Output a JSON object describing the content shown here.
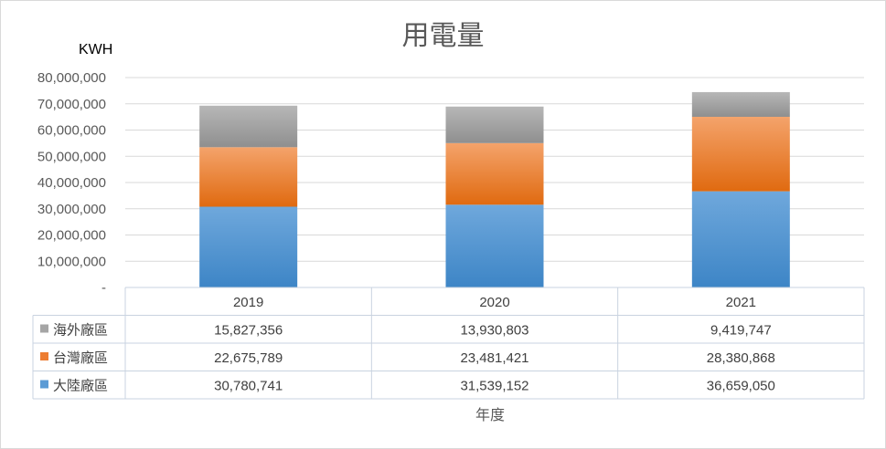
{
  "chart_data": {
    "type": "bar",
    "stacked": true,
    "title": "用電量",
    "ylabel": "KWH",
    "xlabel": "年度",
    "ylim": [
      0,
      80000000
    ],
    "yticks": [
      "-",
      "10,000,000",
      "20,000,000",
      "30,000,000",
      "40,000,000",
      "50,000,000",
      "60,000,000",
      "70,000,000",
      "80,000,000"
    ],
    "categories": [
      "2019",
      "2020",
      "2021"
    ],
    "series": [
      {
        "name": "大陸廠區",
        "color": "#5b9bd5",
        "values": [
          30780741,
          31539152,
          36659050
        ],
        "labels": [
          "30,780,741",
          "31,539,152",
          "36,659,050"
        ]
      },
      {
        "name": "台灣廠區",
        "color": "#ed7d31",
        "values": [
          22675789,
          23481421,
          28380868
        ],
        "labels": [
          "22,675,789",
          "23,481,421",
          "28,380,868"
        ]
      },
      {
        "name": "海外廠區",
        "color": "#a5a5a5",
        "values": [
          15827356,
          13930803,
          9419747
        ],
        "labels": [
          "15,827,356",
          "13,930,803",
          "9,419,747"
        ]
      }
    ],
    "grid": true,
    "legend": "data-table"
  }
}
